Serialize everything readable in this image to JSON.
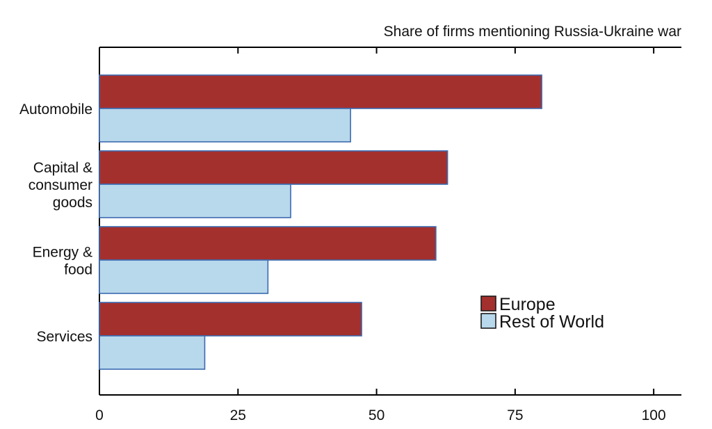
{
  "chart_data": {
    "type": "bar",
    "orientation": "horizontal",
    "title": "Share of firms mentioning Russia-Ukraine war",
    "categories": [
      [
        "Automobile"
      ],
      [
        "Capital &",
        "consumer",
        "goods"
      ],
      [
        "Energy &",
        "food"
      ],
      [
        "Services"
      ]
    ],
    "series": [
      {
        "name": "Europe",
        "color": "#a4302e",
        "values": [
          79.8,
          62.8,
          60.7,
          47.3
        ]
      },
      {
        "name": "Rest of World",
        "color": "#b8d8eb",
        "values": [
          45.3,
          34.5,
          30.4,
          19.0
        ]
      }
    ],
    "xlim": [
      0,
      105
    ],
    "xticks": [
      0,
      25,
      50,
      75,
      100
    ],
    "bar_edge_color": "#3b6ab1",
    "legend_position": "lower-right",
    "grid": false
  }
}
